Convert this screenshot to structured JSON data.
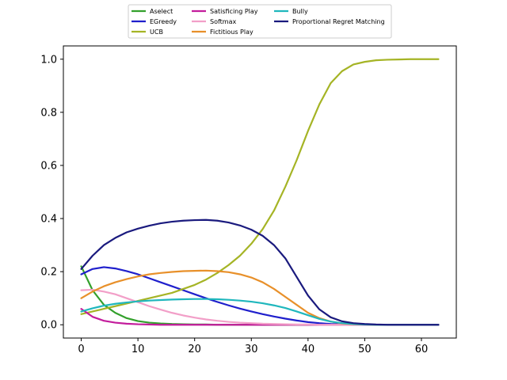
{
  "chart_data": {
    "type": "line",
    "title": "",
    "xlabel": "",
    "ylabel": "",
    "xlim": [
      -3.15,
      66.15
    ],
    "ylim": [
      -0.05,
      1.05
    ],
    "xticks": [
      0,
      10,
      20,
      30,
      40,
      50,
      60
    ],
    "xtick_labels": [
      "0",
      "10",
      "20",
      "30",
      "40",
      "50",
      "60"
    ],
    "yticks": [
      0.0,
      0.2,
      0.4,
      0.6,
      0.8,
      1.0
    ],
    "ytick_labels": [
      "0.0",
      "0.2",
      "0.4",
      "0.6",
      "0.8",
      "1.0"
    ],
    "grid": false,
    "legend_position": "top-center, above plot, 3 columns",
    "x": [
      0,
      2,
      4,
      6,
      8,
      10,
      12,
      14,
      16,
      18,
      20,
      22,
      24,
      26,
      28,
      30,
      32,
      34,
      36,
      38,
      40,
      42,
      44,
      46,
      48,
      50,
      52,
      54,
      56,
      58,
      60,
      63
    ],
    "series": [
      {
        "name": "Aselect",
        "color": "#33a02c",
        "values": [
          0.22,
          0.13,
          0.075,
          0.045,
          0.025,
          0.014,
          0.008,
          0.005,
          0.003,
          0.002,
          0.001,
          0.001,
          0,
          0,
          0,
          0,
          0,
          0,
          0,
          0,
          0,
          0,
          0,
          0,
          0,
          0,
          0,
          0,
          0,
          0,
          0,
          0
        ]
      },
      {
        "name": "EGreedy",
        "color": "#1f1fcc",
        "values": [
          0.19,
          0.21,
          0.217,
          0.212,
          0.202,
          0.19,
          0.175,
          0.16,
          0.145,
          0.13,
          0.115,
          0.1,
          0.086,
          0.073,
          0.061,
          0.05,
          0.04,
          0.031,
          0.023,
          0.016,
          0.01,
          0.006,
          0.003,
          0.002,
          0.001,
          0,
          0,
          0,
          0,
          0,
          0,
          0
        ]
      },
      {
        "name": "UCB",
        "color": "#a5b425",
        "values": [
          0.04,
          0.05,
          0.06,
          0.07,
          0.08,
          0.09,
          0.1,
          0.11,
          0.12,
          0.135,
          0.15,
          0.17,
          0.195,
          0.225,
          0.26,
          0.305,
          0.36,
          0.43,
          0.52,
          0.62,
          0.73,
          0.83,
          0.91,
          0.955,
          0.98,
          0.99,
          0.996,
          0.998,
          0.999,
          1.0,
          1.0,
          1.0
        ]
      },
      {
        "name": "Satisficing Play",
        "color": "#c31c9c",
        "values": [
          0.06,
          0.03,
          0.015,
          0.008,
          0.004,
          0.002,
          0.001,
          0,
          0,
          0,
          0,
          0,
          0,
          0,
          0,
          0,
          0,
          0,
          0,
          0,
          0,
          0,
          0,
          0,
          0,
          0,
          0,
          0,
          0,
          0,
          0,
          0
        ]
      },
      {
        "name": "Softmax",
        "color": "#f29fc8",
        "values": [
          0.13,
          0.132,
          0.125,
          0.115,
          0.1,
          0.085,
          0.07,
          0.057,
          0.045,
          0.035,
          0.027,
          0.02,
          0.015,
          0.011,
          0.008,
          0.006,
          0.004,
          0.003,
          0.002,
          0.001,
          0.001,
          0,
          0,
          0,
          0,
          0,
          0,
          0,
          0,
          0,
          0,
          0
        ]
      },
      {
        "name": "Fictitious Play",
        "color": "#e8902a",
        "values": [
          0.1,
          0.125,
          0.145,
          0.16,
          0.172,
          0.182,
          0.19,
          0.195,
          0.199,
          0.202,
          0.203,
          0.204,
          0.202,
          0.198,
          0.19,
          0.178,
          0.16,
          0.135,
          0.105,
          0.075,
          0.045,
          0.025,
          0.012,
          0.005,
          0.002,
          0.001,
          0,
          0,
          0,
          0,
          0,
          0
        ]
      },
      {
        "name": "Bully",
        "color": "#20b7bd",
        "values": [
          0.05,
          0.062,
          0.072,
          0.079,
          0.084,
          0.088,
          0.091,
          0.093,
          0.095,
          0.096,
          0.097,
          0.097,
          0.096,
          0.094,
          0.091,
          0.087,
          0.081,
          0.073,
          0.063,
          0.05,
          0.036,
          0.022,
          0.012,
          0.006,
          0.003,
          0.001,
          0,
          0,
          0,
          0,
          0,
          0
        ]
      },
      {
        "name": "Proportional Regret Matching",
        "color": "#1a1a7e",
        "values": [
          0.21,
          0.26,
          0.3,
          0.327,
          0.348,
          0.362,
          0.373,
          0.382,
          0.388,
          0.392,
          0.394,
          0.395,
          0.392,
          0.385,
          0.374,
          0.358,
          0.335,
          0.3,
          0.25,
          0.18,
          0.11,
          0.058,
          0.028,
          0.013,
          0.006,
          0.003,
          0.001,
          0,
          0,
          0,
          0,
          0
        ]
      }
    ]
  }
}
